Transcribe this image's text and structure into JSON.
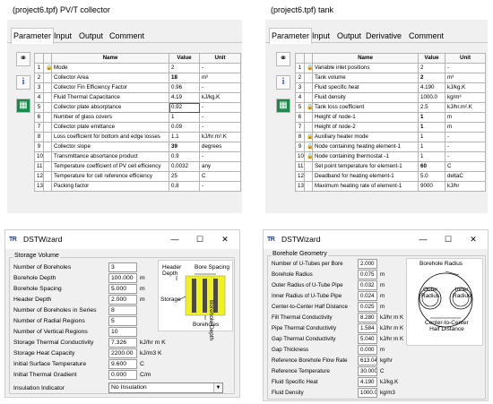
{
  "pvt": {
    "title": "(project6.tpf) PV/T  collector",
    "tabs": [
      "Parameter",
      "Input",
      "Output",
      "Comment"
    ],
    "headers": [
      "Name",
      "Value",
      "Unit"
    ],
    "rows": [
      {
        "n": "1",
        "name": "Mode",
        "value": "2",
        "unit": "-"
      },
      {
        "n": "2",
        "name": "Collector Area",
        "value": "18",
        "unit": "m²"
      },
      {
        "n": "3",
        "name": "Collector Fin Efficiency Factor",
        "value": "0.96",
        "unit": "-"
      },
      {
        "n": "4",
        "name": "Fluid Thermal Capacitance",
        "value": "4.19",
        "unit": "kJ/kg.K"
      },
      {
        "n": "5",
        "name": "Collector plate absorptance",
        "value": "0.92",
        "unit": "-"
      },
      {
        "n": "6",
        "name": "Number of glass covers",
        "value": "1",
        "unit": "-"
      },
      {
        "n": "7",
        "name": "Collector plate emittance",
        "value": "0.09",
        "unit": "-"
      },
      {
        "n": "8",
        "name": "Loss coefficient for bottom and edge losses",
        "value": "1.1",
        "unit": "kJ/hr.m².K"
      },
      {
        "n": "9",
        "name": "Collector slope",
        "value": "39",
        "unit": "degrees"
      },
      {
        "n": "10",
        "name": "Transmittance absortance product",
        "value": "0.9",
        "unit": "-"
      },
      {
        "n": "11",
        "name": "Temperature coefficient of PV cell efficiency",
        "value": "0.0032",
        "unit": "any"
      },
      {
        "n": "12",
        "name": "Temperature for cell reference efficiency",
        "value": "25",
        "unit": "C"
      },
      {
        "n": "13",
        "name": "Packing factor",
        "value": "0.8",
        "unit": "-"
      }
    ]
  },
  "tank": {
    "title": "(project6.tpf) tank",
    "tabs": [
      "Parameter",
      "Input",
      "Output",
      "Derivative",
      "Comment"
    ],
    "headers": [
      "Name",
      "Value",
      "Unit"
    ],
    "rows": [
      {
        "n": "1",
        "name": "Variable inlet positions",
        "value": "2",
        "unit": "-"
      },
      {
        "n": "2",
        "name": "Tank volume",
        "value": "2",
        "unit": "m³"
      },
      {
        "n": "3",
        "name": "Fluid specific heat",
        "value": "4.190",
        "unit": "kJ/kg.K"
      },
      {
        "n": "4",
        "name": "Fluid density",
        "value": "1000.0",
        "unit": "kg/m³"
      },
      {
        "n": "5",
        "name": "Tank loss coefficient",
        "value": "2.5",
        "unit": "kJ/hr.m².K"
      },
      {
        "n": "6",
        "name": "Height of node-1",
        "value": "1",
        "unit": "m"
      },
      {
        "n": "7",
        "name": "Height of node-2",
        "value": "1",
        "unit": "m"
      },
      {
        "n": "8",
        "name": "Auxiliary heater mode",
        "value": "1",
        "unit": "-"
      },
      {
        "n": "9",
        "name": "Node containing heating element-1",
        "value": "1",
        "unit": "-"
      },
      {
        "n": "10",
        "name": "Node containing thermostat -1",
        "value": "1",
        "unit": "-"
      },
      {
        "n": "11",
        "name": "Set point temperature for element-1",
        "value": "60",
        "unit": "C"
      },
      {
        "n": "12",
        "name": "Deadband for heating element-1",
        "value": "5.0",
        "unit": "deltaC"
      },
      {
        "n": "13",
        "name": "Maximum heating rate of element-1",
        "value": "9000",
        "unit": "kJ/hr"
      }
    ]
  },
  "dst1": {
    "title": "DSTWizard",
    "group_label": "Storage Volume",
    "fields": [
      {
        "label": "Number of Boreholes",
        "value": "3",
        "unit": ""
      },
      {
        "label": "Borehole Depth",
        "value": "100.000",
        "unit": "m"
      },
      {
        "label": "Borehole Spacing",
        "value": "5.000",
        "unit": "m"
      },
      {
        "label": "Header Depth",
        "value": "2.000",
        "unit": "m"
      },
      {
        "label": "Number of Boreholes in Series",
        "value": "8",
        "unit": ""
      },
      {
        "label": "Number of Radial Regions",
        "value": "5",
        "unit": ""
      },
      {
        "label": "Number of Vertical Regions",
        "value": "10",
        "unit": ""
      },
      {
        "label": "Storage Thermal Conductivity",
        "value": "7.326",
        "unit": "kJ/hr m K"
      },
      {
        "label": "Storage Heat Capacity",
        "value": "2200.00",
        "unit": "kJ/m3 K"
      },
      {
        "label": "Initial Surface Temperature",
        "value": "9.600",
        "unit": "C"
      },
      {
        "label": "Initial Thermal Gradient",
        "value": "0.000",
        "unit": "C/m"
      }
    ],
    "insulation_label": "Insulation Indicator",
    "insulation_value": "No Insulation",
    "diagram": {
      "header_depth": "Header\nDepth",
      "bore_spacing": "Bore Spacing",
      "borehole_depth": "Borehole Depth",
      "storage": "Storage",
      "boreholes": "Boreholes"
    }
  },
  "dst2": {
    "title": "DSTWizard",
    "group_label": "Borehole Geometry",
    "fields": [
      {
        "label": "Number of U-Tubes per Bore",
        "value": "2.000",
        "unit": ""
      },
      {
        "label": "Borehole Radius",
        "value": "0.075",
        "unit": "m"
      },
      {
        "label": "Outer Radius of U-Tube Pipe",
        "value": "0.032",
        "unit": "m"
      },
      {
        "label": "Inner Radius of U-Tube Pipe",
        "value": "0.024",
        "unit": "m"
      },
      {
        "label": "Center-to-Center Half Distance",
        "value": "0.025",
        "unit": "m"
      },
      {
        "label": "Fill Thermal Conductivity",
        "value": "8.280",
        "unit": "kJ/hr m K"
      },
      {
        "label": "Pipe Thermal Conductivity",
        "value": "1.584",
        "unit": "kJ/hr m K"
      },
      {
        "label": "Gap Thermal Conductivity",
        "value": "5.040",
        "unit": "kJ/hr m K"
      },
      {
        "label": "Gap Thickness",
        "value": "0.000",
        "unit": "m"
      },
      {
        "label": "Reference Borehole Flow Rate",
        "value": "613.04",
        "unit": "kg/hr"
      },
      {
        "label": "Reference Temperature",
        "value": "30.000",
        "unit": "C"
      },
      {
        "label": "Fluid Specific Heat",
        "value": "4.190",
        "unit": "kJ/kg.K"
      },
      {
        "label": "Fluid Density",
        "value": "1000.0",
        "unit": "kg/m3"
      }
    ],
    "diagram": {
      "borehole_radius": "Borehole Radius",
      "outer_radius": "Outer\nRadius",
      "inner_radius": "Inner\nRadius",
      "center_distance": "Center-to-Center\nHalf Distance"
    }
  },
  "window_controls": {
    "minimize": "—",
    "maximize": "☐",
    "close": "✕"
  },
  "colors": {
    "storage_fill": "#f2f21a",
    "borehole_dark": "#4a4a4a",
    "logo": "#233a8a"
  }
}
